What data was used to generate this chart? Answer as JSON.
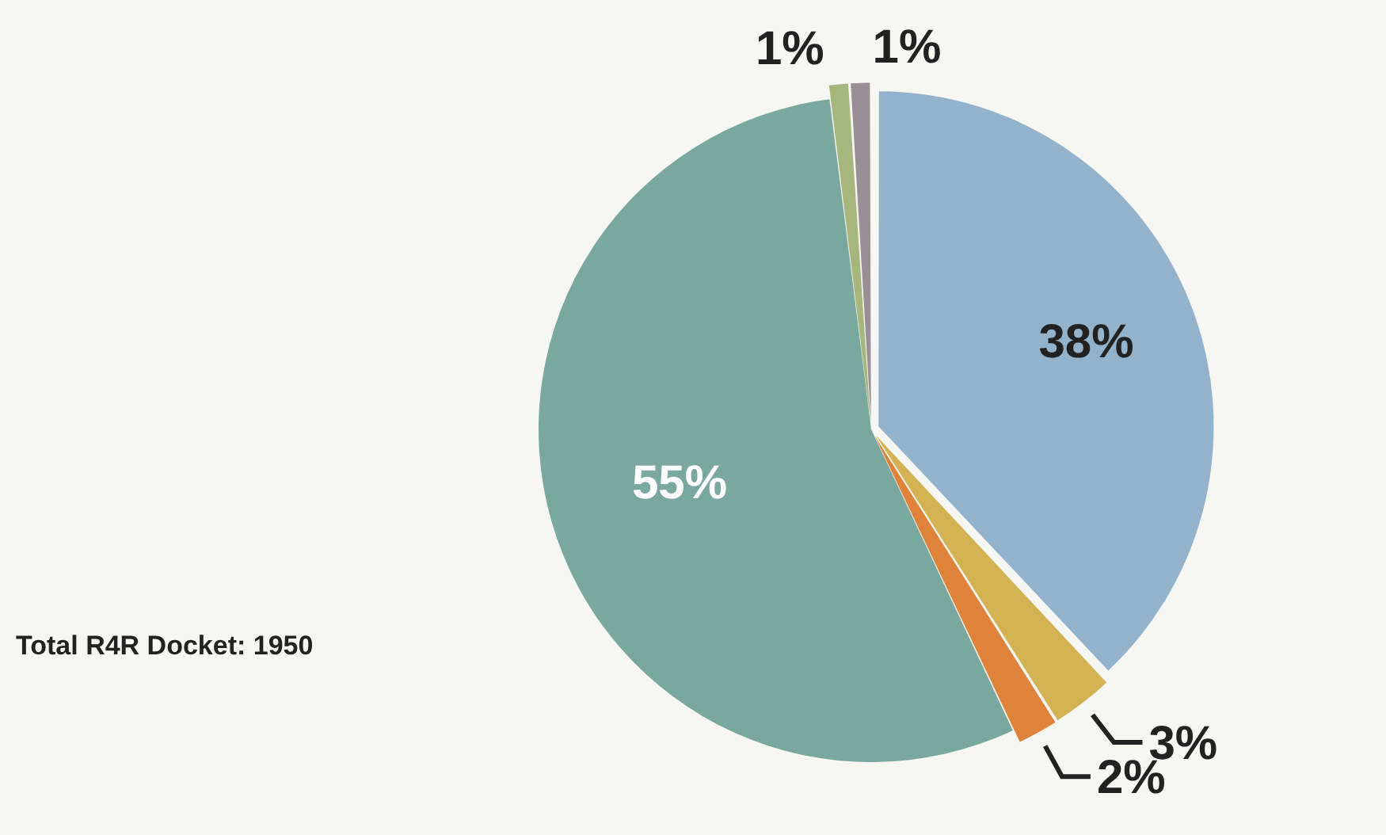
{
  "chart_data": {
    "type": "pie",
    "categories": [
      null,
      null,
      null,
      null,
      null,
      null
    ],
    "values": [
      38,
      3,
      2,
      55,
      1,
      1
    ],
    "colors": [
      "#93b3cc",
      "#d4b253",
      "#e0833a",
      "#7aa89e",
      "#a6b77e",
      "#9a8f95"
    ],
    "value_labels": [
      "38%",
      "3%",
      "2%",
      "55%",
      "1%",
      "1%"
    ],
    "legend": false,
    "annotations": [
      "Total R4R Docket: 1950"
    ]
  }
}
